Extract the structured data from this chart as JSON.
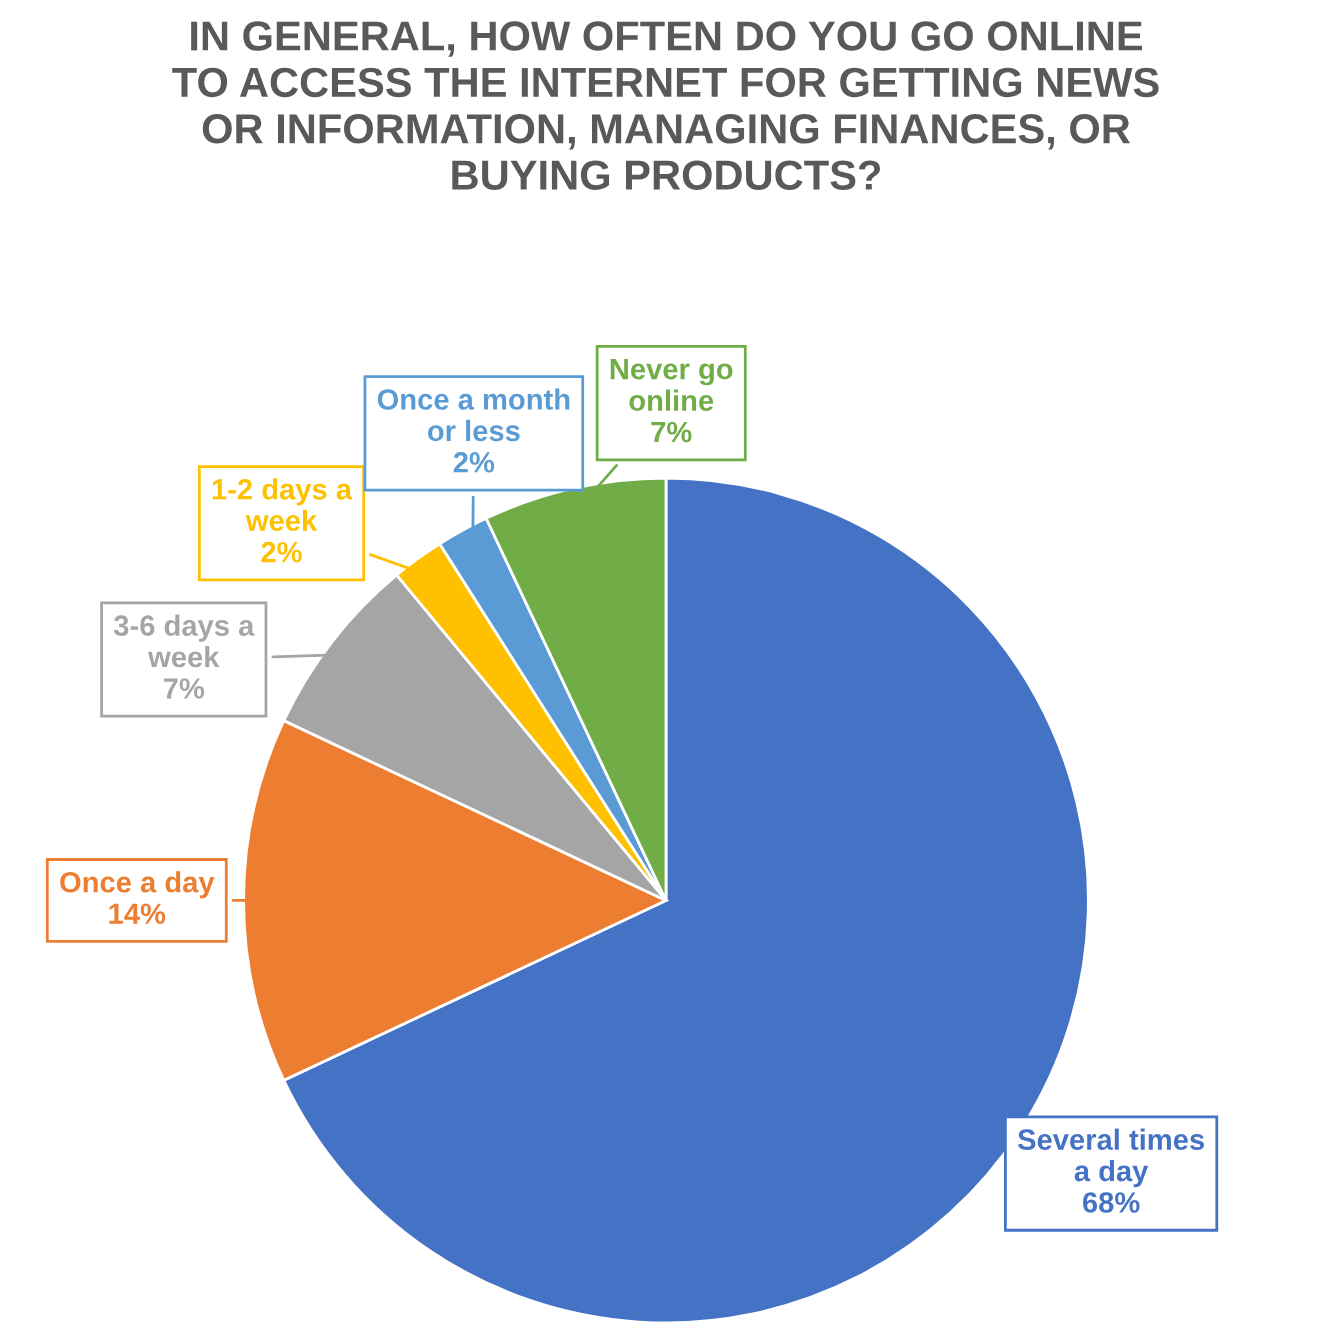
{
  "chart_data": {
    "type": "pie",
    "title": "IN GENERAL, HOW OFTEN DO YOU GO ONLINE TO ACCESS THE INTERNET FOR GETTING NEWS OR INFORMATION, MANAGING FINANCES, OR BUYING PRODUCTS?",
    "categories": [
      "Several times a day",
      "Once a day",
      "3-6 days a week",
      "1-2 days a week",
      "Once a month or less",
      "Never go online"
    ],
    "values": [
      68,
      14,
      7,
      2,
      2,
      7
    ],
    "colors": [
      "#4472c4",
      "#ed7d31",
      "#a5a5a5",
      "#ffc000",
      "#5b9bd5",
      "#70ad47"
    ],
    "value_labels": [
      "68%",
      "14%",
      "7%",
      "2%",
      "2%",
      "7%"
    ],
    "legend": false
  }
}
